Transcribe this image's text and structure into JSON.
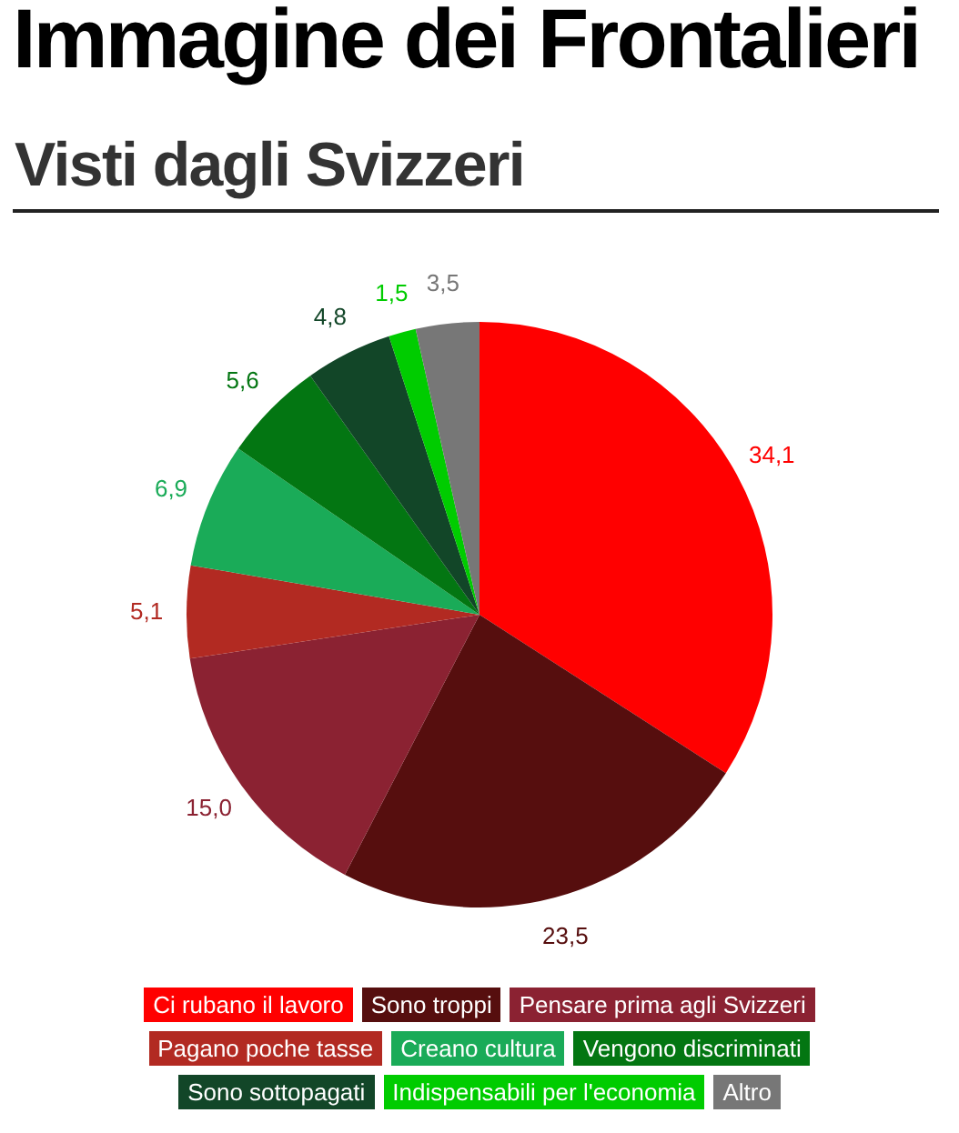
{
  "chart_data": {
    "type": "pie",
    "title": "Immagine dei Frontalieri",
    "subtitle": "Visti dagli Svizzeri",
    "categories": [
      "Ci rubano il lavoro",
      "Sono troppi",
      "Pensare prima agli Svizzeri",
      "Pagano poche tasse",
      "Creano cultura",
      "Vengono discriminati",
      "Sono sottopagati",
      "Indispensabili per l'economia",
      "Altro"
    ],
    "values": [
      34.1,
      23.5,
      15.0,
      5.1,
      6.9,
      5.6,
      4.8,
      1.5,
      3.5
    ],
    "colors": [
      "#ff0000",
      "#560e0e",
      "#8b2232",
      "#b22a22",
      "#1aab58",
      "#037612",
      "#124628",
      "#00cc00",
      "#777777"
    ],
    "value_labels": [
      "34,1",
      "23,5",
      "15,0",
      "5,1",
      "6,9",
      "5,6",
      "4,8",
      "1,5",
      "3,5"
    ],
    "legend": "bottom"
  }
}
